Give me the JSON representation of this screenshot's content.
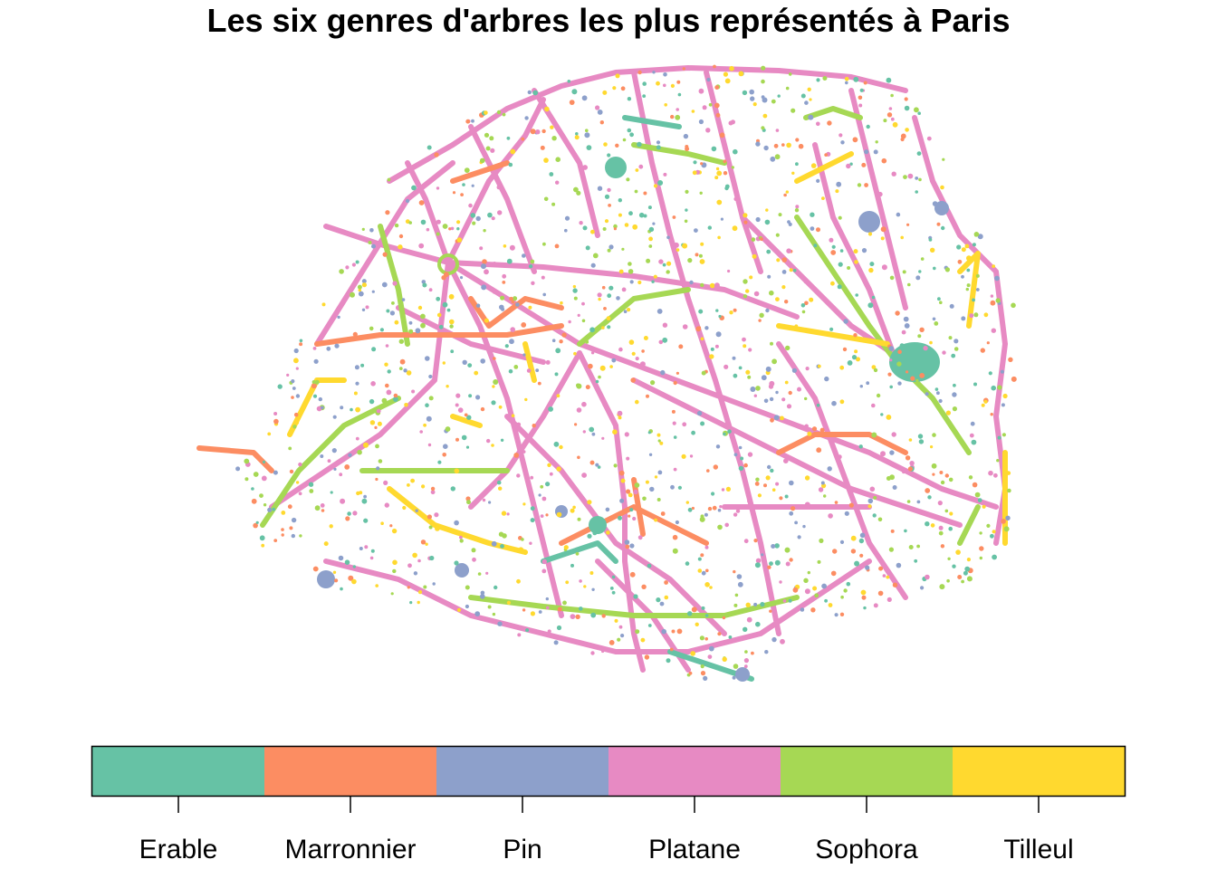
{
  "title": "Les six genres d'arbres les plus représentés à Paris",
  "legend": {
    "items": [
      {
        "label": "Erable",
        "color": "#66C2A5"
      },
      {
        "label": "Marronnier",
        "color": "#FC8D62"
      },
      {
        "label": "Pin",
        "color": "#8DA0CB"
      },
      {
        "label": "Platane",
        "color": "#E78AC3"
      },
      {
        "label": "Sophora",
        "color": "#A6D854"
      },
      {
        "label": "Tilleul",
        "color": "#FFD92F"
      }
    ]
  }
}
